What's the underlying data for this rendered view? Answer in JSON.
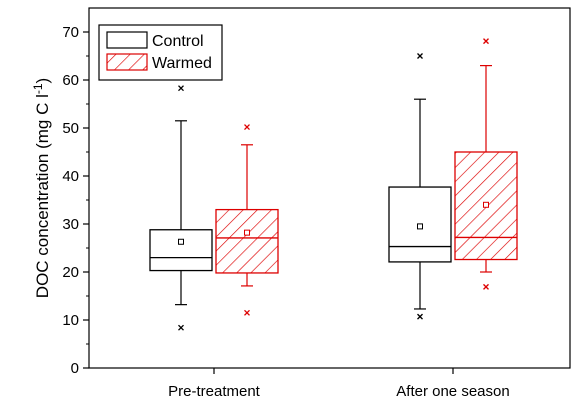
{
  "chart_data": {
    "type": "boxplot",
    "ylabel": "DOC concentration (mg C l",
    "ylabel_sup": "-1",
    "ylabel_end": ")",
    "ylim": [
      0,
      75
    ],
    "yticks": [
      0,
      10,
      20,
      30,
      40,
      50,
      60,
      70
    ],
    "ytick_labels": [
      "0",
      "10",
      "20",
      "30",
      "40",
      "50",
      "60",
      "70"
    ],
    "categories": [
      "Pre-treatment",
      "After one season"
    ],
    "legend": {
      "position": "top-left",
      "entries": [
        "Control",
        "Warmed"
      ]
    },
    "colors": {
      "Control": "#000000",
      "Warmed": "#dd0000"
    },
    "series": [
      {
        "name": "Control",
        "boxes": [
          {
            "whisker_low": 13.2,
            "q1": 20.3,
            "median": 23.0,
            "q3": 28.8,
            "whisker_high": 51.5,
            "mean": 26.3,
            "outliers": [
              8.4,
              58.3
            ]
          },
          {
            "whisker_low": 12.3,
            "q1": 22.1,
            "median": 25.3,
            "q3": 37.7,
            "whisker_high": 56.0,
            "mean": 29.5,
            "outliers": [
              10.7,
              65.0
            ]
          }
        ]
      },
      {
        "name": "Warmed",
        "boxes": [
          {
            "whisker_low": 17.1,
            "q1": 19.8,
            "median": 27.1,
            "q3": 33.0,
            "whisker_high": 46.5,
            "mean": 28.2,
            "outliers": [
              11.5,
              50.2
            ]
          },
          {
            "whisker_low": 20.0,
            "q1": 22.6,
            "median": 27.2,
            "q3": 45.0,
            "whisker_high": 63.0,
            "mean": 34.0,
            "outliers": [
              16.9,
              68.1
            ]
          }
        ]
      }
    ]
  }
}
